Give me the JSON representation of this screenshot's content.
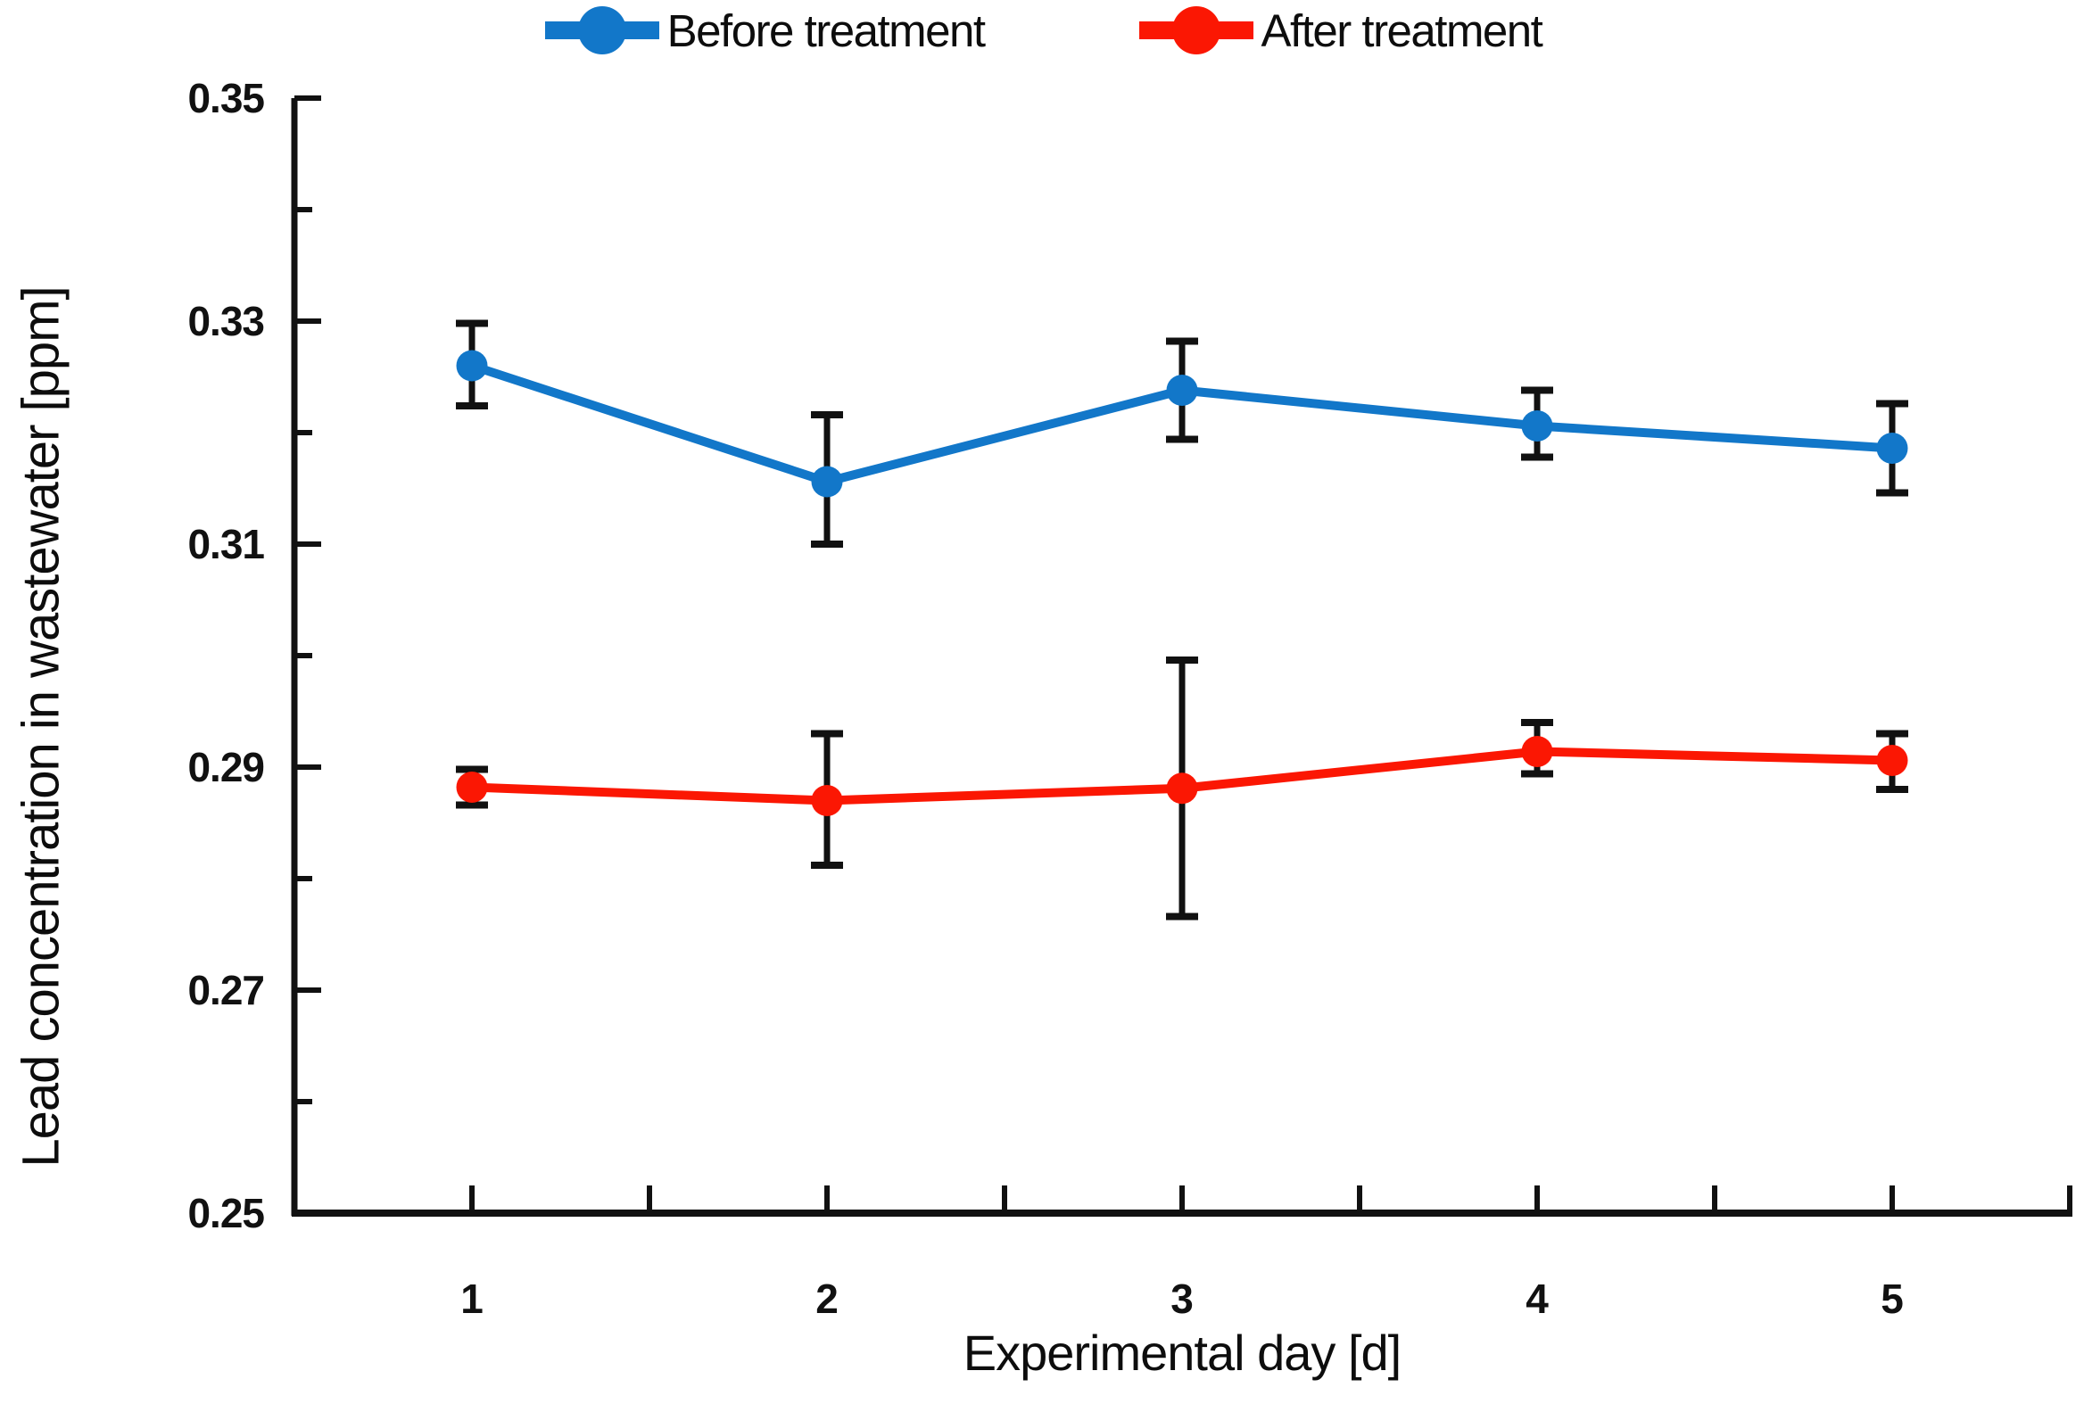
{
  "legend": {
    "items": [
      {
        "label": "Before treatment",
        "color": "#1277C9"
      },
      {
        "label": "After treatment",
        "color": "#FB1703"
      }
    ]
  },
  "chart_data": {
    "type": "line",
    "title": "",
    "xlabel": "Experimental day [d]",
    "ylabel": "Lead concentration in wastewater [ppm]",
    "x_categories": [
      "1",
      "2",
      "3",
      "4",
      "5"
    ],
    "x_values": [
      1,
      2,
      3,
      4,
      5
    ],
    "ylim": [
      0.25,
      0.35
    ],
    "y_major_ticks": [
      0.35,
      0.33,
      0.31,
      0.29,
      0.27,
      0.25
    ],
    "y_minor_ticks": [
      0.34,
      0.32,
      0.3,
      0.28,
      0.26
    ],
    "grid": false,
    "legend_position": "top-center",
    "axis_color": "#111111",
    "error_bar_color": "#111111",
    "series": [
      {
        "name": "Before treatment",
        "color": "#1277C9",
        "values": [
          0.326,
          0.3156,
          0.3238,
          0.3206,
          0.3186
        ],
        "error_up": [
          0.0038,
          0.006,
          0.0044,
          0.0032,
          0.004
        ],
        "error_down": [
          0.0036,
          0.0056,
          0.0044,
          0.0028,
          0.004
        ]
      },
      {
        "name": "After treatment",
        "color": "#FB1703",
        "values": [
          0.2882,
          0.287,
          0.2881,
          0.2914,
          0.2906
        ],
        "error_up": [
          0.0016,
          0.006,
          0.0115,
          0.0026,
          0.0024
        ],
        "error_down": [
          0.0016,
          0.0058,
          0.0115,
          0.002,
          0.0026
        ]
      }
    ]
  }
}
